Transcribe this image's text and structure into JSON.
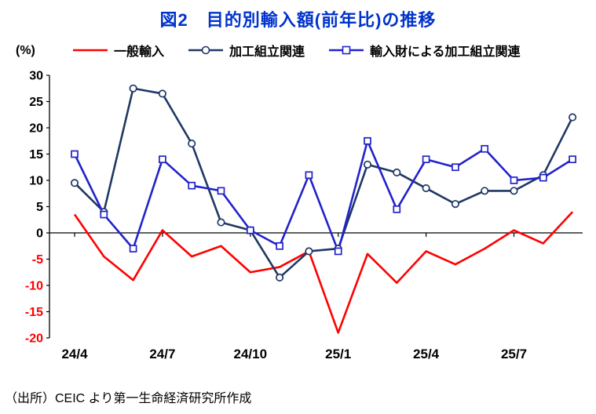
{
  "title": "図2　目的別輸入額(前年比)の推移",
  "y_unit": "(%)",
  "footer": "（出所）CEIC より第一生命経済研究所作成",
  "colors": {
    "title": "#0033CC",
    "axis": "#000000",
    "negative_tick": "#FF0000"
  },
  "chart_data": {
    "type": "line",
    "title": "図2　目的別輸入額(前年比)の推移",
    "xlabel": "",
    "ylabel": "(%)",
    "ylim": [
      -20,
      30
    ],
    "y_ticks": [
      30,
      25,
      20,
      15,
      10,
      5,
      0,
      -5,
      -10,
      -15,
      -20
    ],
    "grid": false,
    "legend_position": "top",
    "x": [
      "24/4",
      "24/5",
      "24/6",
      "24/7",
      "24/8",
      "24/9",
      "24/10",
      "24/11",
      "24/12",
      "25/1",
      "25/2",
      "25/3",
      "25/4",
      "25/5",
      "25/6",
      "25/7",
      "25/8",
      "25/9"
    ],
    "x_tick_labels": [
      "24/4",
      "24/7",
      "24/10",
      "25/1",
      "25/4",
      "25/7"
    ],
    "series": [
      {
        "name": "一般輸入",
        "color": "#FF0000",
        "marker": "none",
        "values": [
          3.5,
          -4.5,
          -9,
          0.5,
          -4.5,
          -2.5,
          -7.5,
          -6.5,
          -3.5,
          -19,
          -4,
          -9.5,
          -3.5,
          -6,
          -3,
          0.5,
          -2,
          4
        ]
      },
      {
        "name": "加工組立関連",
        "color": "#1F3864",
        "marker": "circle",
        "values": [
          9.5,
          4,
          27.5,
          26.5,
          17,
          2,
          0.5,
          -8.5,
          -3.5,
          -3,
          13,
          11.5,
          8.5,
          5.5,
          8,
          8,
          11,
          22
        ]
      },
      {
        "name": "輸入財による加工組立関連",
        "color": "#2222CC",
        "marker": "square",
        "values": [
          15,
          3.5,
          -3,
          14,
          9,
          8,
          0.5,
          -2.5,
          11,
          -3.5,
          17.5,
          4.5,
          14,
          12.5,
          16,
          10,
          10.5,
          14
        ]
      }
    ]
  }
}
